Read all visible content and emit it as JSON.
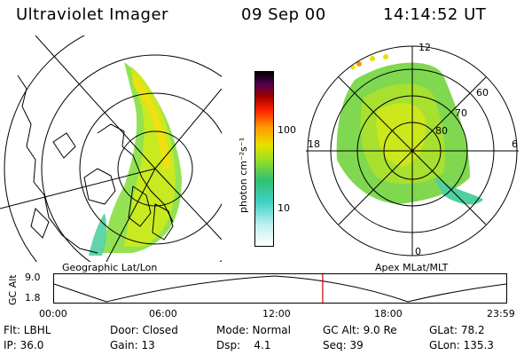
{
  "header": {
    "instrument": "Ultraviolet Imager",
    "date": "09 Sep 00",
    "time": "14:14:52 UT"
  },
  "left_panel": {
    "caption": "Geographic Lat/Lon"
  },
  "right_panel": {
    "caption": "Apex MLat/MLT",
    "mlt_labels": [
      "12",
      "18",
      "6",
      "0"
    ],
    "mlat_labels": [
      "60",
      "70",
      "80"
    ]
  },
  "colorbar": {
    "unit_label": "photon cm⁻²s⁻¹",
    "ticks": [
      "100",
      "10"
    ],
    "scale": "log",
    "colors": [
      "#ffffff",
      "#c0f0ee",
      "#40d0c8",
      "#30c070",
      "#a0e020",
      "#e8e000",
      "#ff9900",
      "#ff2000",
      "#a00000",
      "#500050",
      "#000000"
    ]
  },
  "timeline": {
    "ylabel": "GC Alt",
    "yticks": [
      "9.0",
      "1.8"
    ],
    "xticks": [
      "00:00",
      "06:00",
      "12:00",
      "18:00",
      "23:59"
    ],
    "marker_fraction": 0.594,
    "marker_color": "#cc0000"
  },
  "info": {
    "row1": [
      "Flt: LBHL",
      "Door: Closed",
      "Mode: Normal",
      "GC Alt: 9.0 Re",
      "GLat: 78.2"
    ],
    "row2": [
      "IP: 36.0",
      "Gain: 13",
      "Dsp:    4.1",
      "Seq: 39",
      "GLon: 135.3"
    ]
  }
}
